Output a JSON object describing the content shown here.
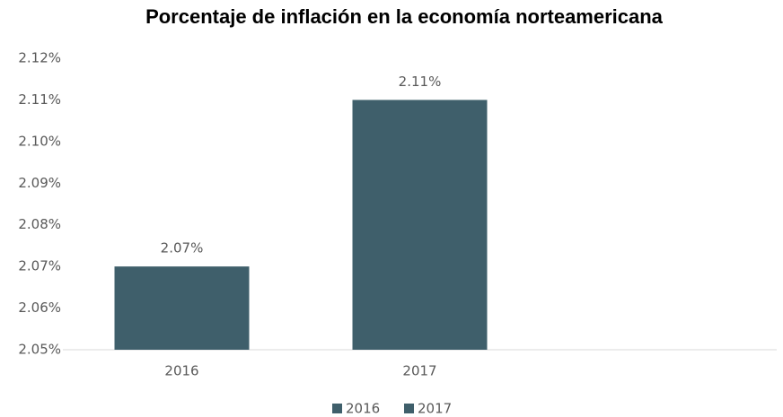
{
  "chart_data": {
    "type": "bar",
    "title": "Porcentaje de inflación en la economía norteamericana",
    "categories": [
      "2016",
      "2017",
      null
    ],
    "values": [
      2.07,
      2.11,
      null
    ],
    "value_labels": [
      "2.07%",
      "2.11%",
      null
    ],
    "color": "#3f5f6b",
    "ylim": [
      2.05,
      2.12
    ],
    "yticks": [
      {
        "value": 2.05,
        "label": "2.05%"
      },
      {
        "value": 2.06,
        "label": "2.06%"
      },
      {
        "value": 2.07,
        "label": "2.07%"
      },
      {
        "value": 2.08,
        "label": "2.08%"
      },
      {
        "value": 2.09,
        "label": "2.09%"
      },
      {
        "value": 2.1,
        "label": "2.10%"
      },
      {
        "value": 2.11,
        "label": "2.11%"
      },
      {
        "value": 2.12,
        "label": "2.12%"
      }
    ],
    "grid": false,
    "legend": "bottom"
  }
}
